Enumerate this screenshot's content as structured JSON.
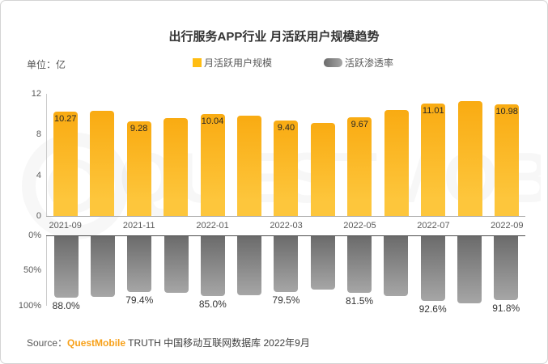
{
  "title": "出行服务APP行业 月活跃用户规模趋势",
  "unit_label": "单位：亿",
  "legend": {
    "items": [
      {
        "label": "月活跃用户规模"
      },
      {
        "label": "活跃渗透率"
      }
    ]
  },
  "watermark_text": "QUESTMOBILE",
  "source": {
    "prefix": "Source：",
    "brand": "QuestMobile",
    "suffix": " TRUTH 中国移动互联网数据库 2022年9月"
  },
  "colors": {
    "mau_bar_top": "#F9AB12",
    "mau_bar_bottom": "#FDC63C",
    "penetration_bar_top": "#6B6B6B",
    "penetration_bar_bottom": "#A6A6A6",
    "brand_orange": "#F7A11A",
    "legend_mau_swatch": "#FFBD13"
  },
  "chart_data": [
    {
      "type": "bar",
      "name": "月活跃用户规模",
      "unit": "亿",
      "categories": [
        "2021-09",
        "2021-10",
        "2021-11",
        "2021-12",
        "2022-01",
        "2022-02",
        "2022-03",
        "2022-04",
        "2022-05",
        "2022-06",
        "2022-07",
        "2022-08",
        "2022-09"
      ],
      "values": [
        10.27,
        10.32,
        9.28,
        9.65,
        10.04,
        9.85,
        9.4,
        9.1,
        9.67,
        10.38,
        11.01,
        11.29,
        10.98
      ],
      "bar_labels": [
        "10.27",
        "",
        "9.28",
        "",
        "10.04",
        "",
        "9.40",
        "",
        "9.67",
        "",
        "11.01",
        "",
        "10.98"
      ],
      "ylim": [
        0,
        12
      ],
      "yticks": [
        {
          "label": "0",
          "value": 0
        },
        {
          "label": "4",
          "value": 4
        },
        {
          "label": "8",
          "value": 8
        },
        {
          "label": "12",
          "value": 12
        }
      ],
      "x_tick_labels": [
        "2021-09",
        "2021-11",
        "2022-01",
        "2022-03",
        "2022-05",
        "2022-07",
        "2022-09"
      ],
      "x_tick_every": 2,
      "legend_position": "top",
      "grid": false
    },
    {
      "type": "bar",
      "name": "活跃渗透率",
      "orientation": "downward",
      "categories": [
        "2021-09",
        "2021-10",
        "2021-11",
        "2021-12",
        "2022-01",
        "2022-02",
        "2022-03",
        "2022-04",
        "2022-05",
        "2022-06",
        "2022-07",
        "2022-08",
        "2022-09"
      ],
      "values": [
        88.0,
        87.0,
        79.4,
        81.5,
        85.0,
        84.0,
        79.5,
        76.0,
        81.5,
        86.0,
        92.6,
        96.0,
        91.8
      ],
      "bar_labels": [
        "88.0%",
        "",
        "79.4%",
        "",
        "85.0%",
        "",
        "79.5%",
        "",
        "81.5%",
        "",
        "92.6%",
        "",
        "91.8%"
      ],
      "ylim": [
        0,
        100
      ],
      "yticks": [
        {
          "label": "0%",
          "value": 0
        },
        {
          "label": "50%",
          "value": 50
        },
        {
          "label": "100%",
          "value": 100
        }
      ],
      "grid": false
    }
  ]
}
